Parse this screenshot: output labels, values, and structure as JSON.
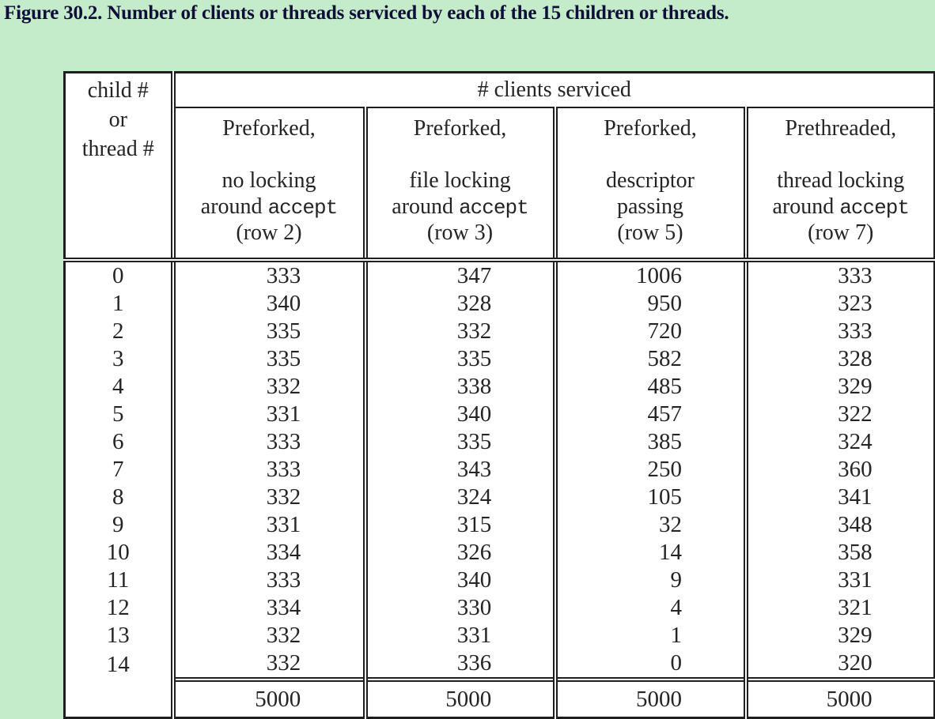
{
  "title": "Figure 30.2. Number of clients or threads serviced by each of the 15 children or threads.",
  "colors": {
    "page_background": "#c5ecca",
    "table_background": "#ffffff",
    "title_text": "#0e0e38",
    "table_text": "#242424",
    "table_rules": "#1f1f1f"
  },
  "table": {
    "corner_header": {
      "line1": "child #",
      "line2": "or",
      "line3": "thread #"
    },
    "span_header": "# clients serviced",
    "columns": [
      {
        "id": "preforked-no-locking",
        "line1": "Preforked,",
        "line2": "no locking",
        "line3_before": "around ",
        "line3_mono": "accept",
        "line4": "(row 2)"
      },
      {
        "id": "preforked-file-locking",
        "line1": "Preforked,",
        "line2": "file locking",
        "line3_before": "around ",
        "line3_mono": "accept",
        "line4": "(row 3)"
      },
      {
        "id": "preforked-descriptor-passing",
        "line1": "Preforked,",
        "line2": "descriptor",
        "line3_before": "passing",
        "line3_mono": "",
        "line4": "(row 5)"
      },
      {
        "id": "prethreaded-thread-locking",
        "line1": "Prethreaded,",
        "line2": "thread locking",
        "line3_before": "around ",
        "line3_mono": "accept",
        "line4": "(row 7)"
      }
    ],
    "rows": [
      {
        "child": "0",
        "values": [
          "333",
          "347",
          "1006",
          "333"
        ]
      },
      {
        "child": "1",
        "values": [
          "340",
          "328",
          "950",
          "323"
        ]
      },
      {
        "child": "2",
        "values": [
          "335",
          "332",
          "720",
          "333"
        ]
      },
      {
        "child": "3",
        "values": [
          "335",
          "335",
          "582",
          "328"
        ]
      },
      {
        "child": "4",
        "values": [
          "332",
          "338",
          "485",
          "329"
        ]
      },
      {
        "child": "5",
        "values": [
          "331",
          "340",
          "457",
          "322"
        ]
      },
      {
        "child": "6",
        "values": [
          "333",
          "335",
          "385",
          "324"
        ]
      },
      {
        "child": "7",
        "values": [
          "333",
          "343",
          "250",
          "360"
        ]
      },
      {
        "child": "8",
        "values": [
          "332",
          "324",
          "105",
          "341"
        ]
      },
      {
        "child": "9",
        "values": [
          "331",
          "315",
          "32",
          "348"
        ]
      },
      {
        "child": "10",
        "values": [
          "334",
          "326",
          "14",
          "358"
        ]
      },
      {
        "child": "11",
        "values": [
          "333",
          "340",
          "9",
          "331"
        ]
      },
      {
        "child": "12",
        "values": [
          "334",
          "330",
          "4",
          "321"
        ]
      },
      {
        "child": "13",
        "values": [
          "332",
          "331",
          "1",
          "329"
        ]
      },
      {
        "child": "14",
        "values": [
          "332",
          "336",
          "0",
          "320"
        ]
      }
    ],
    "totals": [
      "5000",
      "5000",
      "5000",
      "5000"
    ]
  }
}
